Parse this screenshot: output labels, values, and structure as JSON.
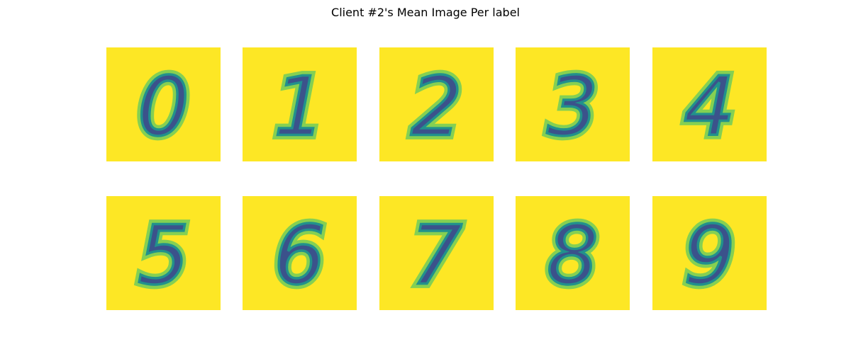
{
  "chart_data": {
    "type": "heatmap",
    "title": "Client #2's Mean Image Per label",
    "colormap": "viridis",
    "background_color": "#fde725",
    "digit_color": "#3b528b",
    "panels": [
      {
        "label": "0"
      },
      {
        "label": "1"
      },
      {
        "label": "2"
      },
      {
        "label": "3"
      },
      {
        "label": "4"
      },
      {
        "label": "5"
      },
      {
        "label": "6"
      },
      {
        "label": "7"
      },
      {
        "label": "8"
      },
      {
        "label": "9"
      }
    ]
  }
}
